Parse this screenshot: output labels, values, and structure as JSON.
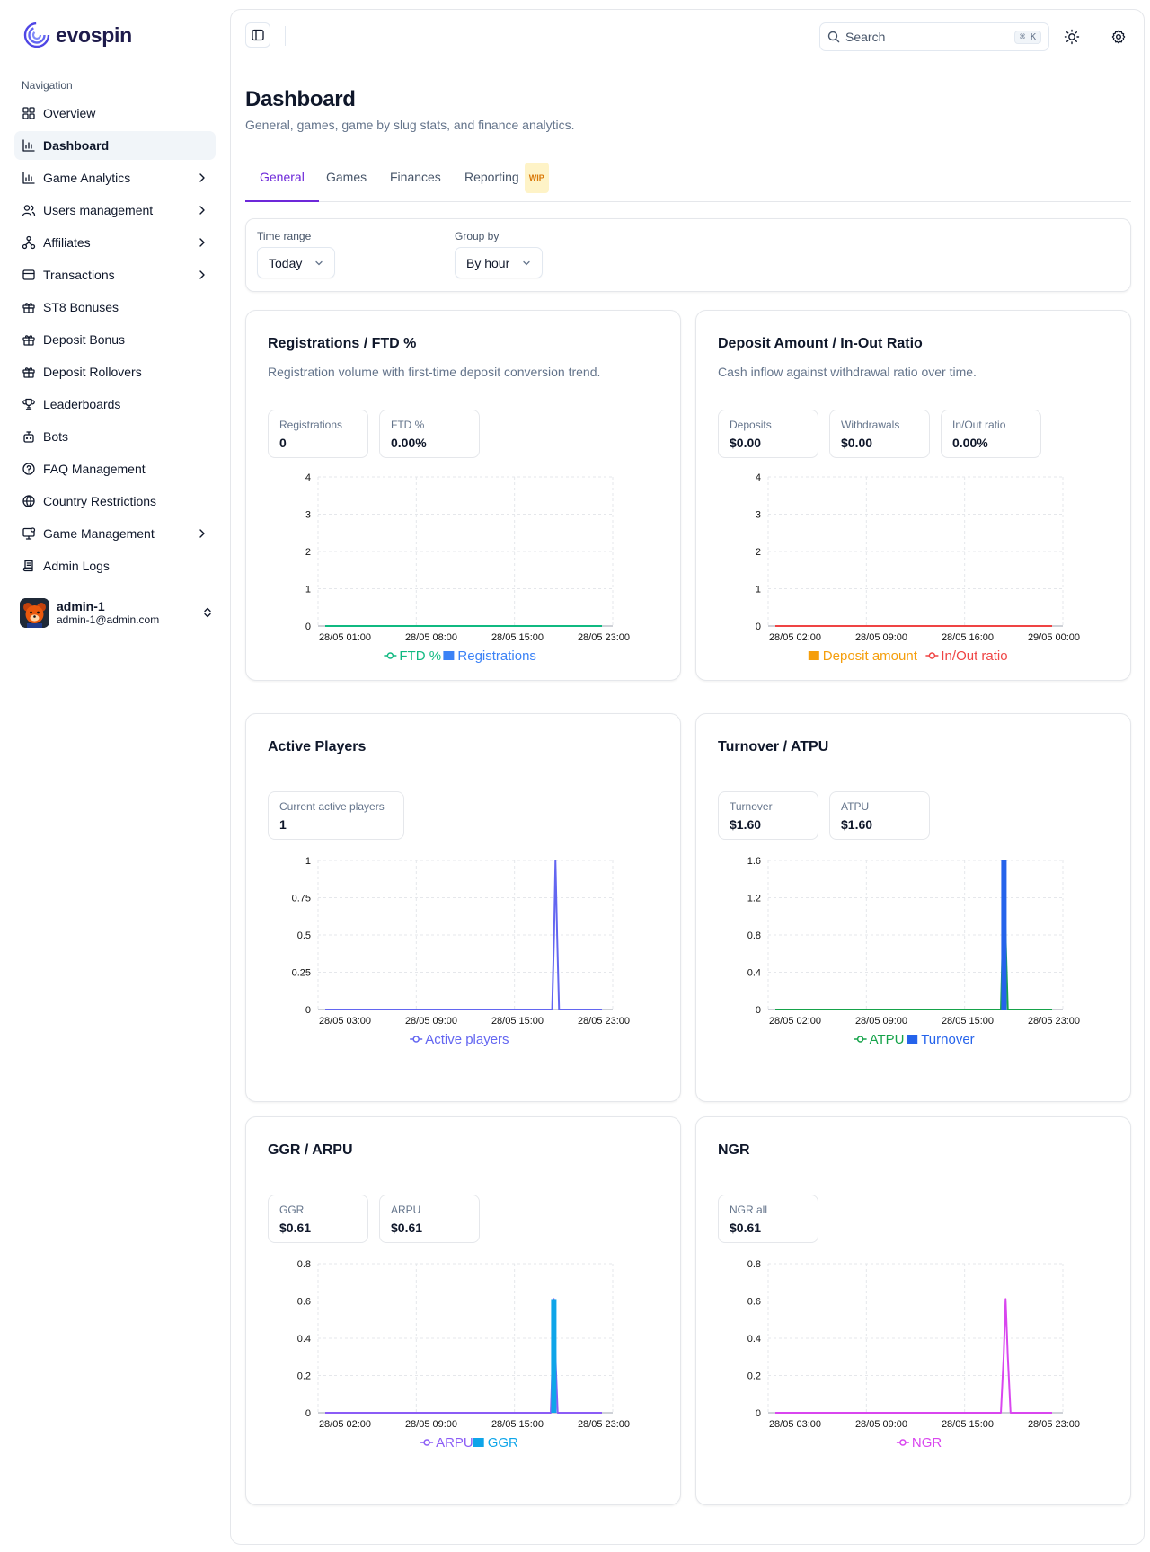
{
  "brand": {
    "name": "evospin"
  },
  "sidebar": {
    "heading": "Navigation",
    "items": [
      {
        "label": "Overview",
        "icon": "overview-icon",
        "has_chevron": false,
        "active": false
      },
      {
        "label": "Dashboard",
        "icon": "chart-icon",
        "has_chevron": false,
        "active": true
      },
      {
        "label": "Game Analytics",
        "icon": "chart-icon",
        "has_chevron": true,
        "active": false
      },
      {
        "label": "Users management",
        "icon": "users-icon",
        "has_chevron": true,
        "active": false
      },
      {
        "label": "Affiliates",
        "icon": "network-icon",
        "has_chevron": true,
        "active": false
      },
      {
        "label": "Transactions",
        "icon": "wallet-icon",
        "has_chevron": true,
        "active": false
      },
      {
        "label": "ST8 Bonuses",
        "icon": "gift-icon",
        "has_chevron": false,
        "active": false
      },
      {
        "label": "Deposit Bonus",
        "icon": "gift-icon",
        "has_chevron": false,
        "active": false
      },
      {
        "label": "Deposit Rollovers",
        "icon": "gift-icon",
        "has_chevron": false,
        "active": false
      },
      {
        "label": "Leaderboards",
        "icon": "trophy-icon",
        "has_chevron": false,
        "active": false
      },
      {
        "label": "Bots",
        "icon": "bot-icon",
        "has_chevron": false,
        "active": false
      },
      {
        "label": "FAQ Management",
        "icon": "help-circle-icon",
        "has_chevron": false,
        "active": false
      },
      {
        "label": "Country Restrictions",
        "icon": "globe-icon",
        "has_chevron": false,
        "active": false
      },
      {
        "label": "Game Management",
        "icon": "monitor-icon",
        "has_chevron": true,
        "active": false
      },
      {
        "label": "Admin Logs",
        "icon": "scroll-icon",
        "has_chevron": false,
        "active": false
      }
    ]
  },
  "user": {
    "name": "admin-1",
    "email": "admin-1@admin.com"
  },
  "header": {
    "search_placeholder": "Search",
    "shortcut": "⌘ K"
  },
  "page": {
    "title": "Dashboard",
    "subtitle": "General, games, game by slug stats, and finance analytics."
  },
  "tabs": [
    {
      "label": "General",
      "active": true
    },
    {
      "label": "Games",
      "active": false
    },
    {
      "label": "Finances",
      "active": false
    },
    {
      "label": "Reporting",
      "active": false,
      "badge": "WIP"
    }
  ],
  "filters": {
    "time_range": {
      "label": "Time range",
      "value": "Today"
    },
    "group_by": {
      "label": "Group by",
      "value": "By hour"
    }
  },
  "colors": {
    "accent": "#6d28d9",
    "ftd": "#10b981",
    "registrations": "#3b82f6",
    "deposit": "#f59e0b",
    "inout": "#ef4444",
    "active": "#6366f1",
    "atpu": "#16a34a",
    "turnover": "#2563eb",
    "arpu": "#8b5cf6",
    "ggr": "#0ea5e9",
    "ngr": "#d946ef"
  },
  "cards": {
    "registrations": {
      "title": "Registrations / FTD %",
      "description": "Registration volume with first-time deposit conversion trend.",
      "stats": [
        {
          "label": "Registrations",
          "value": "0"
        },
        {
          "label": "FTD %",
          "value": "0.00%"
        }
      ]
    },
    "deposit": {
      "title": "Deposit Amount / In-Out Ratio",
      "description": "Cash inflow against withdrawal ratio over time.",
      "stats": [
        {
          "label": "Deposits",
          "value": "$0.00"
        },
        {
          "label": "Withdrawals",
          "value": "$0.00"
        },
        {
          "label": "In/Out ratio",
          "value": "0.00%"
        }
      ]
    },
    "active": {
      "title": "Active Players",
      "stats": [
        {
          "label": "Current active players",
          "value": "1"
        }
      ]
    },
    "turnover": {
      "title": "Turnover / ATPU",
      "stats": [
        {
          "label": "Turnover",
          "value": "$1.60"
        },
        {
          "label": "ATPU",
          "value": "$1.60"
        }
      ]
    },
    "ggr": {
      "title": "GGR / ARPU",
      "stats": [
        {
          "label": "GGR",
          "value": "$0.61"
        },
        {
          "label": "ARPU",
          "value": "$0.61"
        }
      ]
    },
    "ngr": {
      "title": "NGR",
      "stats": [
        {
          "label": "NGR all",
          "value": "$0.61"
        }
      ]
    }
  },
  "chart_data": [
    {
      "id": "registrations",
      "type": "line",
      "x": [
        "28/05 01:00",
        "28/05 08:00",
        "28/05 15:00",
        "28/05 23:00"
      ],
      "y_ticks": [
        "0",
        "1",
        "2",
        "3",
        "4"
      ],
      "ylim": [
        0,
        4
      ],
      "series": [
        {
          "name": "FTD %",
          "kind": "line",
          "color": "#10b981",
          "points": [
            [
              0,
              0
            ],
            [
              1,
              0
            ]
          ]
        },
        {
          "name": "Registrations",
          "kind": "bar",
          "color": "#3b82f6",
          "points": []
        }
      ]
    },
    {
      "id": "deposit",
      "type": "line",
      "x": [
        "28/05 02:00",
        "28/05 09:00",
        "28/05 16:00",
        "29/05 00:00"
      ],
      "y_ticks": [
        "0",
        "1",
        "2",
        "3",
        "4"
      ],
      "ylim": [
        0,
        4
      ],
      "series": [
        {
          "name": "Deposit amount",
          "kind": "bar",
          "color": "#f59e0b",
          "points": []
        },
        {
          "name": "In/Out ratio",
          "kind": "line",
          "color": "#ef4444",
          "points": [
            [
              0,
              0
            ],
            [
              1,
              0
            ]
          ]
        }
      ]
    },
    {
      "id": "active",
      "type": "line",
      "x": [
        "28/05 03:00",
        "28/05 09:00",
        "28/05 15:00",
        "28/05 23:00"
      ],
      "y_ticks": [
        "0",
        "0.25",
        "0.5",
        "0.75",
        "1"
      ],
      "ylim": [
        0,
        1
      ],
      "series": [
        {
          "name": "Active players",
          "kind": "line",
          "color": "#6366f1",
          "points": [
            [
              0,
              0
            ],
            [
              0.82,
              0
            ],
            [
              0.827,
              0.5
            ],
            [
              0.832,
              1
            ],
            [
              0.838,
              0.5
            ],
            [
              0.845,
              0
            ],
            [
              1,
              0
            ]
          ]
        }
      ]
    },
    {
      "id": "turnover",
      "type": "line",
      "x": [
        "28/05 02:00",
        "28/05 09:00",
        "28/05 15:00",
        "28/05 23:00"
      ],
      "y_ticks": [
        "0",
        "0.4",
        "0.8",
        "1.2",
        "1.6"
      ],
      "ylim": [
        0,
        1.6
      ],
      "series": [
        {
          "name": "ATPU",
          "kind": "line",
          "color": "#16a34a",
          "points": [
            [
              0,
              0
            ],
            [
              0.815,
              0
            ],
            [
              0.822,
              0.8
            ],
            [
              0.826,
              1.6
            ],
            [
              0.832,
              0.8
            ],
            [
              0.84,
              0
            ],
            [
              1,
              0
            ]
          ]
        },
        {
          "name": "Turnover",
          "kind": "bar",
          "color": "#2563eb",
          "points": [
            [
              0.826,
              1.6
            ]
          ]
        }
      ]
    },
    {
      "id": "ggr",
      "type": "line",
      "x": [
        "28/05 02:00",
        "28/05 09:00",
        "28/05 15:00",
        "28/05 23:00"
      ],
      "y_ticks": [
        "0",
        "0.2",
        "0.4",
        "0.6",
        "0.8"
      ],
      "ylim": [
        0,
        0.8
      ],
      "series": [
        {
          "name": "ARPU",
          "kind": "line",
          "color": "#8b5cf6",
          "points": [
            [
              0,
              0
            ],
            [
              0.815,
              0
            ],
            [
              0.822,
              0.3
            ],
            [
              0.826,
              0.61
            ],
            [
              0.832,
              0.3
            ],
            [
              0.84,
              0
            ],
            [
              1,
              0
            ]
          ]
        },
        {
          "name": "GGR",
          "kind": "bar",
          "color": "#0ea5e9",
          "points": [
            [
              0.826,
              0.61
            ]
          ]
        }
      ]
    },
    {
      "id": "ngr",
      "type": "line",
      "x": [
        "28/05 03:00",
        "28/05 09:00",
        "28/05 15:00",
        "28/05 23:00"
      ],
      "y_ticks": [
        "0",
        "0.2",
        "0.4",
        "0.6",
        "0.8"
      ],
      "ylim": [
        0,
        0.8
      ],
      "series": [
        {
          "name": "NGR",
          "kind": "line",
          "color": "#d946ef",
          "points": [
            [
              0,
              0
            ],
            [
              0.815,
              0
            ],
            [
              0.825,
              0.3
            ],
            [
              0.832,
              0.61
            ],
            [
              0.84,
              0.3
            ],
            [
              0.85,
              0
            ],
            [
              1,
              0
            ]
          ]
        }
      ]
    }
  ]
}
